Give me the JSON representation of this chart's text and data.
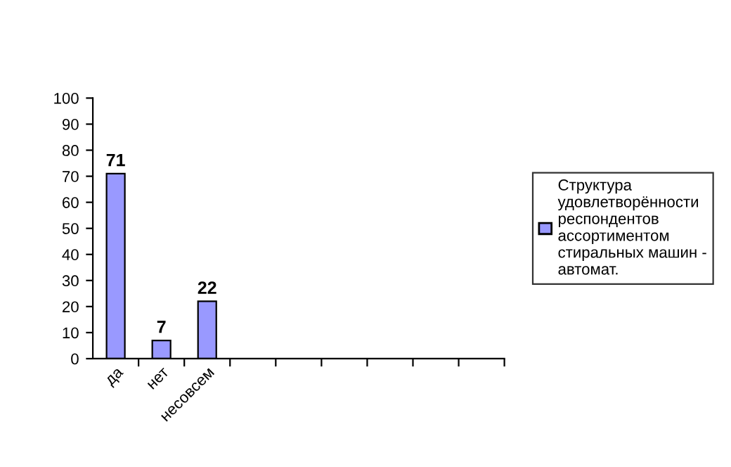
{
  "chart_data": {
    "type": "bar",
    "categories": [
      "да",
      "нет",
      "несовсем",
      null,
      null,
      null,
      null,
      null,
      null
    ],
    "series": [
      {
        "name": "Структура\nудовлетворённости\nреспондентов\nассортиментом\nстиральных машин -\nавтомат.",
        "color": "#9999ff",
        "values": [
          71,
          7,
          22,
          null,
          null,
          null,
          null,
          null,
          null
        ]
      }
    ],
    "ylim": [
      0,
      100
    ],
    "yticks": [
      0,
      10,
      20,
      30,
      40,
      50,
      60,
      70,
      80,
      90,
      100
    ],
    "data_labels": true,
    "grid": false,
    "legend": "right"
  }
}
